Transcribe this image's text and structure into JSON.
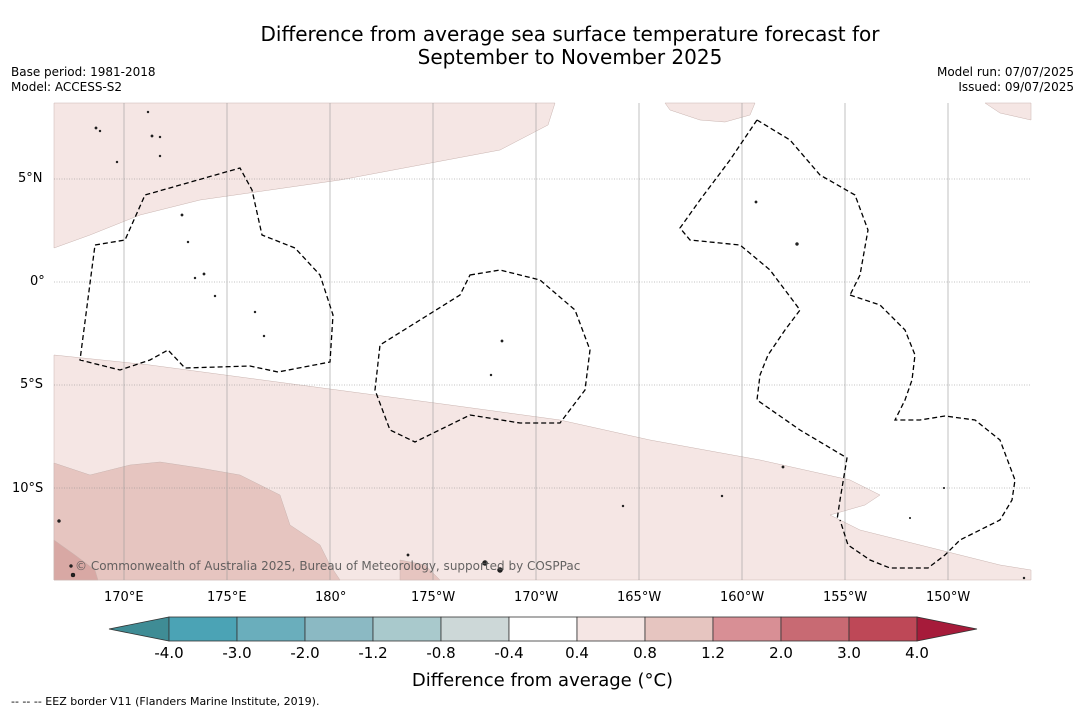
{
  "title_line1": "Difference from average sea surface temperature forecast for",
  "title_line2": "September to November 2025",
  "meta_left": {
    "base_period": "Base period: 1981-2018",
    "model": "Model: ACCESS-S2"
  },
  "meta_right": {
    "model_run": "Model run: 07/07/2025",
    "issued": "Issued: 09/07/2025"
  },
  "credit": "© Commonwealth of Australia 2025, Bureau of Meteorology, supported by COSPPac",
  "lat_labels": [
    "5°N",
    "0°",
    "5°S",
    "10°S"
  ],
  "lon_labels": [
    "170°E",
    "175°E",
    "180°",
    "175°W",
    "170°W",
    "165°W",
    "160°W",
    "155°W",
    "150°W"
  ],
  "colorbar": {
    "ticks": [
      "-4.0",
      "-3.0",
      "-2.0",
      "-1.2",
      "-0.8",
      "-0.4",
      "0.4",
      "0.8",
      "1.2",
      "2.0",
      "3.0",
      "4.0"
    ],
    "colors": [
      "#3f8c95",
      "#4ba3b5",
      "#6aaebc",
      "#8bb9c3",
      "#a9c9cc",
      "#cdd8d8",
      "#ffffff",
      "#f5e6e4",
      "#e6c5c0",
      "#d88f95",
      "#c86a73",
      "#be4857",
      "#a61b3a"
    ],
    "title": "Difference from average (°C)"
  },
  "footnote": "-- -- -- EEZ border V11 (Flanders Marine Institute, 2019).",
  "colors": {
    "light_anomaly": "#f5e6e4",
    "medium_anomaly": "#e6c5c0",
    "strong_anomaly": "#d8a8a4"
  }
}
